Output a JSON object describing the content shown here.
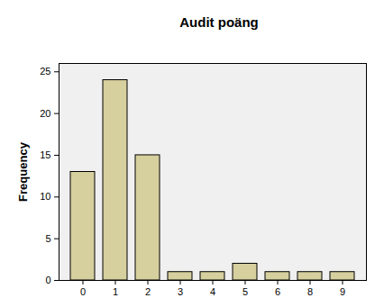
{
  "chart_data": {
    "type": "bar",
    "title": "Audit poäng",
    "y_label": "Frequency",
    "categories": [
      "0",
      "1",
      "2",
      "3",
      "4",
      "5",
      "6",
      "8",
      "9"
    ],
    "values": [
      13,
      24,
      15,
      1,
      1,
      2,
      1,
      1,
      1
    ],
    "color": "#d6cf9e",
    "ylim": [
      0,
      26
    ],
    "yticks": [
      0,
      5,
      10,
      15,
      20,
      25
    ],
    "grid": false
  }
}
